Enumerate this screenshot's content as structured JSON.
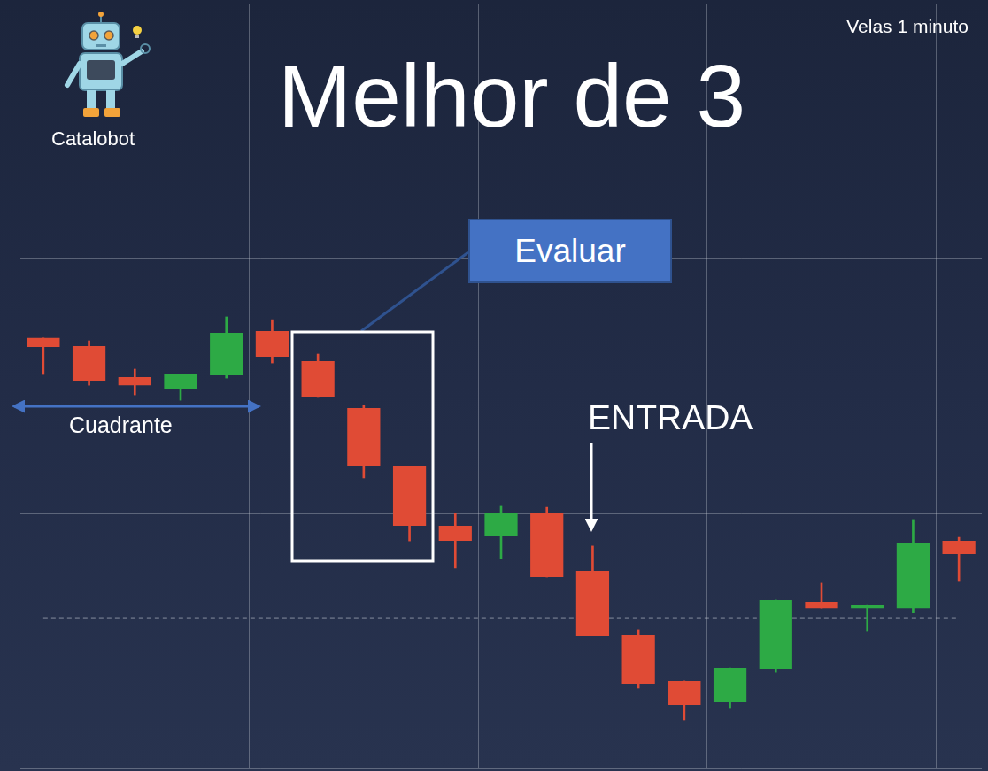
{
  "chart_data": {
    "type": "candlestick",
    "title": "Melhor de 3",
    "subtitle": "Velas 1 minuto",
    "categories": [
      null,
      null,
      null,
      null,
      null,
      null,
      null,
      null,
      null,
      null,
      null,
      null,
      null,
      null,
      null,
      null,
      null,
      null,
      null,
      null,
      null
    ],
    "open": [
      36.88,
      36.56,
      35.35,
      34.86,
      35.42,
      37.15,
      35.97,
      34.13,
      31.84,
      29.51,
      29.13,
      30.03,
      27.74,
      25.24,
      23.44,
      22.6,
      23.89,
      26.53,
      26.28,
      26.28,
      28.92
    ],
    "high": [
      36.88,
      36.77,
      35.66,
      35.45,
      37.71,
      37.6,
      36.25,
      34.24,
      31.84,
      30.0,
      30.28,
      30.24,
      28.72,
      25.42,
      23.44,
      23.92,
      26.6,
      27.26,
      26.42,
      29.76,
      29.06
    ],
    "low": [
      35.45,
      35.03,
      34.65,
      34.44,
      35.31,
      35.9,
      34.55,
      31.39,
      28.92,
      27.85,
      28.23,
      27.5,
      25.21,
      23.16,
      21.91,
      22.36,
      23.78,
      26.28,
      25.38,
      26.11,
      27.36
    ],
    "close": [
      36.53,
      35.21,
      35.03,
      35.45,
      37.08,
      36.15,
      34.55,
      31.84,
      29.51,
      28.92,
      30.03,
      27.5,
      25.21,
      23.3,
      22.5,
      23.92,
      26.6,
      26.28,
      26.42,
      28.85,
      28.4
    ],
    "colors": [
      "#e04b35",
      "#e04b35",
      "#e04b35",
      "#2daa45",
      "#2daa45",
      "#e04b35",
      "#e04b35",
      "#e04b35",
      "#e04b35",
      "#e04b35",
      "#2daa45",
      "#e04b35",
      "#e04b35",
      "#e04b35",
      "#e04b35",
      "#2daa45",
      "#2daa45",
      "#e04b35",
      "#2daa45",
      "#2daa45",
      "#e04b35"
    ],
    "current_price": 25.9,
    "ylim": [
      20,
      50
    ],
    "yticks": [
      20,
      30,
      40,
      50
    ],
    "grid": true,
    "tick_labels": false,
    "annotations": [
      "Evaluar",
      "Cuadrante",
      "ENTRADA"
    ]
  },
  "brand": "Catalobot"
}
